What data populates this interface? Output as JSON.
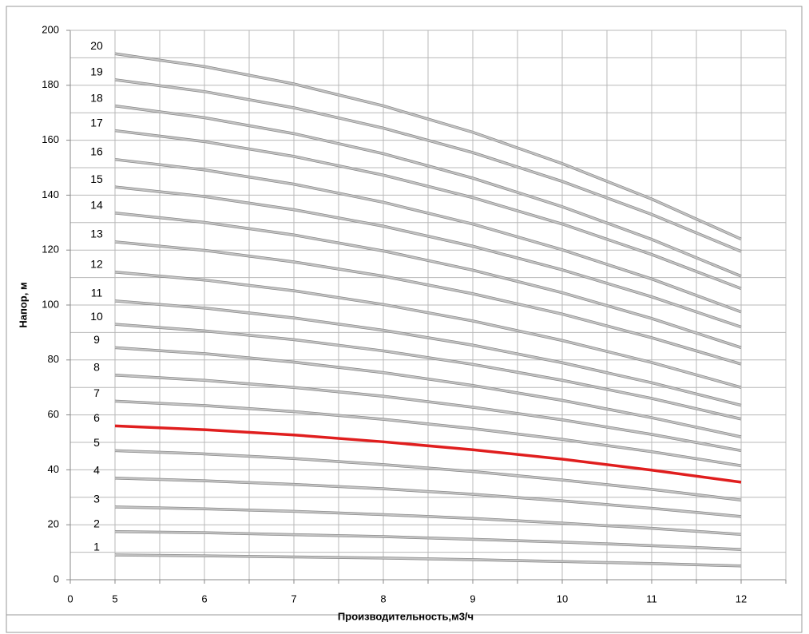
{
  "chart_data": {
    "type": "line",
    "y_label": "Напор, м",
    "x_label": "Производительность,м3/ч",
    "x_origin_label": "0",
    "x": [
      5,
      6,
      7,
      8,
      9,
      10,
      11,
      12
    ],
    "xlim": [
      4.5,
      12.5
    ],
    "xticks": [
      5,
      6,
      7,
      8,
      9,
      10,
      11,
      12
    ],
    "ylim": [
      0,
      200
    ],
    "yticks": [
      0,
      20,
      40,
      60,
      80,
      100,
      120,
      140,
      160,
      180,
      200
    ],
    "grid": true,
    "series": [
      {
        "name": "1",
        "color": "#c4c4c4",
        "values": [
          9,
          8.7,
          8.3,
          7.9,
          7.3,
          6.6,
          5.9,
          5
        ]
      },
      {
        "name": "2",
        "color": "#c4c4c4",
        "values": [
          17.5,
          17.1,
          16.4,
          15.7,
          14.7,
          13.7,
          12.4,
          11
        ]
      },
      {
        "name": "3",
        "color": "#c4c4c4",
        "values": [
          26.5,
          25.8,
          24.9,
          23.7,
          22.3,
          20.6,
          18.7,
          16.5
        ]
      },
      {
        "name": "4",
        "color": "#c4c4c4",
        "values": [
          37,
          36,
          34.7,
          33.1,
          31.1,
          28.7,
          26,
          23
        ]
      },
      {
        "name": "5",
        "color": "#c4c4c4",
        "values": [
          47,
          45.8,
          44.1,
          41.9,
          39.4,
          36.3,
          32.9,
          29
        ]
      },
      {
        "name": "6",
        "color": "#e01e1e",
        "values": [
          56,
          54.6,
          52.7,
          50.2,
          47.3,
          43.9,
          39.9,
          35.5
        ]
      },
      {
        "name": "7",
        "color": "#c4c4c4",
        "values": [
          65,
          63.4,
          61.2,
          58.4,
          55,
          51.1,
          46.6,
          41.5
        ]
      },
      {
        "name": "8",
        "color": "#c4c4c4",
        "values": [
          74.5,
          72.6,
          70,
          66.8,
          62.8,
          58.2,
          52.9,
          47
        ]
      },
      {
        "name": "9",
        "color": "#c4c4c4",
        "values": [
          84.5,
          82.3,
          79.2,
          75.4,
          70.7,
          65.3,
          59,
          52
        ]
      },
      {
        "name": "10",
        "color": "#c4c4c4",
        "values": [
          93,
          90.6,
          87.4,
          83.3,
          78.4,
          72.6,
          66,
          58.5
        ]
      },
      {
        "name": "11",
        "color": "#c4c4c4",
        "values": [
          101.5,
          98.9,
          95.3,
          90.8,
          85.4,
          79,
          71.7,
          63.5
        ]
      },
      {
        "name": "12",
        "color": "#c4c4c4",
        "values": [
          112,
          109.1,
          105.2,
          100.2,
          94.2,
          87.1,
          79.1,
          70
        ]
      },
      {
        "name": "13",
        "color": "#c4c4c4",
        "values": [
          123,
          119.9,
          115.7,
          110.5,
          104.1,
          96.7,
          88.1,
          78.5
        ]
      },
      {
        "name": "14",
        "color": "#c4c4c4",
        "values": [
          133.5,
          130.1,
          125.5,
          119.7,
          112.7,
          104.5,
          95.1,
          84.5
        ]
      },
      {
        "name": "15",
        "color": "#c4c4c4",
        "values": [
          143,
          139.5,
          134.7,
          128.7,
          121.4,
          112.8,
          103,
          92
        ]
      },
      {
        "name": "16",
        "color": "#c4c4c4",
        "values": [
          153,
          149.2,
          144,
          137.4,
          129.5,
          120.1,
          109.5,
          97.5
        ]
      },
      {
        "name": "17",
        "color": "#c4c4c4",
        "values": [
          163.5,
          159.5,
          154.1,
          147.3,
          139.1,
          129.5,
          118.4,
          106
        ]
      },
      {
        "name": "18",
        "color": "#c4c4c4",
        "values": [
          172.5,
          168.2,
          162.4,
          155.1,
          146.2,
          135.8,
          123.9,
          110.5
        ]
      },
      {
        "name": "19",
        "color": "#c4c4c4",
        "values": [
          182,
          177.7,
          171.8,
          164.4,
          155.5,
          145,
          133,
          119.5
        ]
      },
      {
        "name": "20",
        "color": "#c4c4c4",
        "values": [
          191.5,
          186.8,
          180.5,
          172.5,
          162.9,
          151.5,
          138.6,
          124
        ]
      }
    ]
  }
}
